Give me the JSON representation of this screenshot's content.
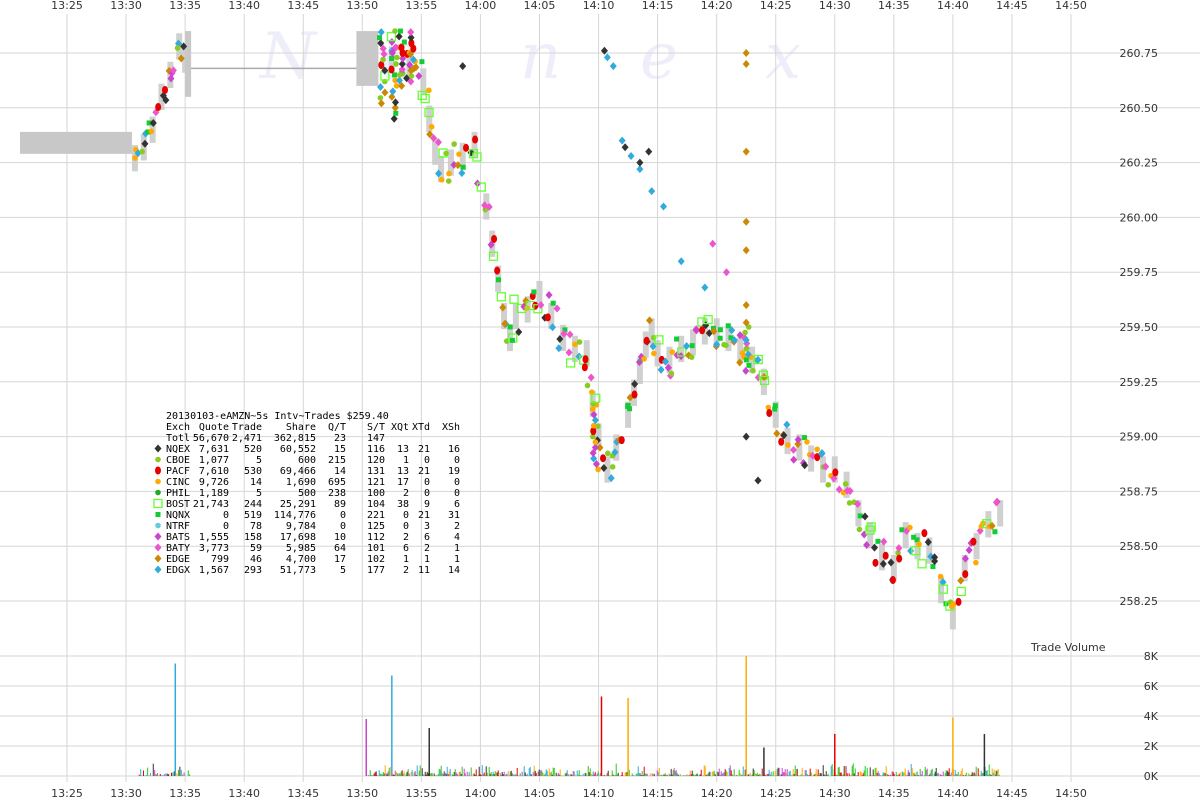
{
  "chart_data": {
    "type": "scatter",
    "title": "20130103-eAMZN~5s Intv~Trades $259.40",
    "watermark": [
      "N",
      "a",
      "n",
      "e",
      "x"
    ],
    "xticks": [
      "13:25",
      "13:30",
      "13:35",
      "13:40",
      "13:45",
      "13:50",
      "13:55",
      "14:00",
      "14:05",
      "14:10",
      "14:15",
      "14:20",
      "14:25",
      "14:30",
      "14:35",
      "14:40",
      "14:45",
      "14:50"
    ],
    "price_axis": {
      "ylim": [
        258.0,
        260.875
      ],
      "ticks": [
        "258.25",
        "258.50",
        "258.75",
        "259.00",
        "259.25",
        "259.50",
        "259.75",
        "260.00",
        "260.25",
        "260.50",
        "260.75"
      ]
    },
    "volume_axis": {
      "label": "Trade Volume",
      "ylim": [
        0,
        8000
      ],
      "ticks": [
        "0K",
        "2K",
        "4K",
        "6K",
        "8K"
      ]
    },
    "grid": true,
    "colors": {
      "NQEX": "#333333",
      "CBOE": "#88cc22",
      "PACF": "#e60000",
      "CINC": "#ffaa00",
      "PHIL": "#22aa22",
      "BOST": "#66ff33",
      "NQNX": "#11cc33",
      "NTRF": "#66ccdd",
      "BATS": "#cc44cc",
      "BATY": "#ee55cc",
      "EDGE": "#cc8800",
      "EDGX": "#33aadd",
      "nbbo_band": "#c8c8c8"
    },
    "table": {
      "header": [
        "Exch",
        "Quote",
        "Trade",
        "Share",
        "Q/T",
        "S/T",
        "XQt",
        "XTd",
        "XSh"
      ],
      "totals": [
        "Totl",
        "56,670",
        "2,471",
        "362,815",
        "23",
        "147",
        "",
        "",
        ""
      ],
      "rows": [
        {
          "exch": "NQEX",
          "cells": [
            "7,631",
            "520",
            "60,552",
            "15",
            "116",
            "13",
            "21",
            "16"
          ]
        },
        {
          "exch": "CBOE",
          "cells": [
            "1,077",
            "5",
            "600",
            "215",
            "120",
            "1",
            "0",
            "0"
          ]
        },
        {
          "exch": "PACF",
          "cells": [
            "7,610",
            "530",
            "69,466",
            "14",
            "131",
            "13",
            "21",
            "19"
          ]
        },
        {
          "exch": "CINC",
          "cells": [
            "9,726",
            "14",
            "1,690",
            "695",
            "121",
            "17",
            "0",
            "0"
          ]
        },
        {
          "exch": "PHIL",
          "cells": [
            "1,189",
            "5",
            "500",
            "238",
            "100",
            "2",
            "0",
            "0"
          ]
        },
        {
          "exch": "BOST",
          "cells": [
            "21,743",
            "244",
            "25,291",
            "89",
            "104",
            "38",
            "9",
            "6"
          ]
        },
        {
          "exch": "NQNX",
          "cells": [
            "0",
            "519",
            "114,776",
            "0",
            "221",
            "0",
            "21",
            "31"
          ]
        },
        {
          "exch": "NTRF",
          "cells": [
            "0",
            "78",
            "9,784",
            "0",
            "125",
            "0",
            "3",
            "2"
          ]
        },
        {
          "exch": "BATS",
          "cells": [
            "1,555",
            "158",
            "17,698",
            "10",
            "112",
            "2",
            "6",
            "4"
          ]
        },
        {
          "exch": "BATY",
          "cells": [
            "3,773",
            "59",
            "5,985",
            "64",
            "101",
            "6",
            "2",
            "1"
          ]
        },
        {
          "exch": "EDGE",
          "cells": [
            "799",
            "46",
            "4,700",
            "17",
            "102",
            "1",
            "1",
            "1"
          ]
        },
        {
          "exch": "EDGX",
          "cells": [
            "1,567",
            "293",
            "51,773",
            "5",
            "177",
            "2",
            "11",
            "14"
          ]
        }
      ]
    },
    "price_path": [
      [
        "13:30:45",
        260.27
      ],
      [
        "13:31:30",
        260.32
      ],
      [
        "13:32:15",
        260.4
      ],
      [
        "13:33:00",
        260.55
      ],
      [
        "13:33:45",
        260.65
      ],
      [
        "13:34:30",
        260.78
      ],
      [
        "13:35:00",
        260.72
      ],
      [
        "13:52:30",
        260.72
      ],
      [
        "13:54:00",
        260.7
      ],
      [
        "13:55:10",
        260.62
      ],
      [
        "13:55:40",
        260.45
      ],
      [
        "13:56:10",
        260.3
      ],
      [
        "13:56:40",
        260.22
      ],
      [
        "13:57:30",
        260.25
      ],
      [
        "13:58:30",
        260.28
      ],
      [
        "13:59:30",
        260.33
      ],
      [
        "14:00:30",
        260.05
      ],
      [
        "14:01:00",
        259.88
      ],
      [
        "14:01:30",
        259.72
      ],
      [
        "14:02:00",
        259.55
      ],
      [
        "14:02:30",
        259.45
      ],
      [
        "14:03:00",
        259.55
      ],
      [
        "14:04:00",
        259.58
      ],
      [
        "14:05:00",
        259.65
      ],
      [
        "14:06:00",
        259.55
      ],
      [
        "14:07:00",
        259.45
      ],
      [
        "14:08:00",
        259.4
      ],
      [
        "14:09:00",
        259.38
      ],
      [
        "14:09:30",
        259.15
      ],
      [
        "14:10:00",
        259.0
      ],
      [
        "14:10:45",
        258.85
      ],
      [
        "14:11:30",
        258.95
      ],
      [
        "14:12:30",
        259.1
      ],
      [
        "14:13:00",
        259.2
      ],
      [
        "14:13:30",
        259.3
      ],
      [
        "14:14:00",
        259.42
      ],
      [
        "14:14:30",
        259.48
      ],
      [
        "14:15:00",
        259.38
      ],
      [
        "14:16:00",
        259.35
      ],
      [
        "14:17:00",
        259.4
      ],
      [
        "14:18:00",
        259.43
      ],
      [
        "14:19:00",
        259.48
      ],
      [
        "14:20:00",
        259.48
      ],
      [
        "14:21:00",
        259.45
      ],
      [
        "14:22:00",
        259.4
      ],
      [
        "14:23:00",
        259.35
      ],
      [
        "14:24:00",
        259.25
      ],
      [
        "14:25:00",
        259.1
      ],
      [
        "14:26:00",
        258.98
      ],
      [
        "14:27:00",
        258.95
      ],
      [
        "14:28:00",
        258.9
      ],
      [
        "14:29:00",
        258.85
      ],
      [
        "14:30:00",
        258.85
      ],
      [
        "14:31:00",
        258.78
      ],
      [
        "14:32:00",
        258.65
      ],
      [
        "14:33:00",
        258.55
      ],
      [
        "14:34:00",
        258.45
      ],
      [
        "14:35:00",
        258.4
      ],
      [
        "14:36:00",
        258.55
      ],
      [
        "14:37:00",
        258.5
      ],
      [
        "14:38:00",
        258.48
      ],
      [
        "14:39:00",
        258.3
      ],
      [
        "14:40:00",
        258.18
      ],
      [
        "14:41:00",
        258.4
      ],
      [
        "14:42:00",
        258.5
      ],
      [
        "14:43:00",
        258.6
      ],
      [
        "14:44:00",
        258.65
      ]
    ],
    "outliers": [
      {
        "exch": "EDGX",
        "points": [
          [
            "14:10:45",
            260.73
          ],
          [
            "14:11:15",
            260.69
          ],
          [
            "14:12:00",
            260.35
          ],
          [
            "14:12:45",
            260.28
          ],
          [
            "14:13:30",
            260.22
          ],
          [
            "14:14:30",
            260.12
          ],
          [
            "14:15:30",
            260.05
          ],
          [
            "14:17:00",
            259.8
          ],
          [
            "14:19:00",
            259.68
          ],
          [
            "14:20:00",
            259.42
          ],
          [
            "14:21:30",
            259.44
          ],
          [
            "14:22:30",
            259.44
          ],
          [
            "14:23:30",
            259.35
          ]
        ]
      },
      {
        "exch": "NQEX",
        "points": [
          [
            "14:10:30",
            260.76
          ],
          [
            "14:12:15",
            260.32
          ],
          [
            "14:13:30",
            260.25
          ],
          [
            "14:14:15",
            260.3
          ],
          [
            "14:23:30",
            258.8
          ],
          [
            "14:22:30",
            259.0
          ]
        ]
      },
      {
        "exch": "EDGE",
        "points": [
          [
            "14:22:30",
            260.75
          ],
          [
            "14:22:30",
            260.7
          ],
          [
            "14:22:30",
            260.3
          ],
          [
            "14:22:30",
            259.98
          ],
          [
            "14:22:30",
            259.85
          ],
          [
            "14:22:30",
            259.6
          ],
          [
            "14:22:30",
            259.52
          ]
        ]
      },
      {
        "exch": "BATY",
        "points": [
          [
            "14:19:40",
            259.88
          ],
          [
            "14:20:50",
            259.75
          ]
        ]
      },
      {
        "exch": "NQEX",
        "points": [
          [
            "13:58:30",
            260.69
          ]
        ]
      }
    ],
    "volume_spikes": [
      [
        "13:34:10",
        7500
      ],
      [
        "13:52:30",
        6700
      ],
      [
        "13:50:20",
        3800
      ],
      [
        "13:55:40",
        3200
      ],
      [
        "14:10:15",
        5300
      ],
      [
        "14:12:30",
        5200
      ],
      [
        "14:22:30",
        8000
      ],
      [
        "14:30:00",
        2800
      ],
      [
        "14:40:00",
        3900
      ],
      [
        "14:24:00",
        1900
      ],
      [
        "14:42:40",
        2800
      ]
    ]
  }
}
